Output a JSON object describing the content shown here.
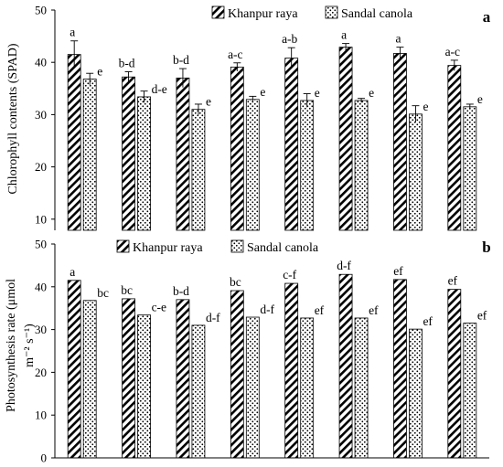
{
  "chart_data": [
    {
      "type": "bar",
      "panel_label": "a",
      "ylabel": "Chlorophyll contents (SPAD)",
      "xlabel": "",
      "ylim": [
        0,
        50
      ],
      "yticks": [
        10,
        20,
        30,
        40,
        50
      ],
      "grid": false,
      "legend_position": "top",
      "categories": [
        "",
        "",
        "",
        "",
        "",
        "",
        "",
        ""
      ],
      "series": [
        {
          "name": "Khanpur raya",
          "pattern": "diagonal-hatch",
          "values": [
            41.5,
            37.2,
            37.0,
            39.1,
            40.8,
            42.9,
            41.7,
            39.4
          ],
          "errors": [
            2.6,
            1.0,
            1.8,
            0.8,
            2.0,
            0.7,
            1.2,
            1.0
          ],
          "labels": [
            "a",
            "b-d",
            "b-d",
            "a-c",
            "a-b",
            "a",
            "a",
            "a-c"
          ]
        },
        {
          "name": "Sandal canola",
          "pattern": "dots",
          "values": [
            36.8,
            33.4,
            31.0,
            32.9,
            32.7,
            32.7,
            30.1,
            31.5
          ],
          "errors": [
            1.1,
            1.1,
            1.0,
            0.6,
            1.3,
            0.4,
            1.6,
            0.5
          ],
          "labels": [
            "e",
            "d-e",
            "e",
            "e",
            "e",
            "e",
            "e",
            "e"
          ]
        }
      ]
    },
    {
      "type": "bar",
      "panel_label": "b",
      "ylabel": "Photosynthesis rate (μmol m⁻² s⁻¹)",
      "xlabel": "",
      "ylim": [
        0,
        50
      ],
      "yticks": [
        0,
        10,
        20,
        30,
        40,
        50
      ],
      "grid": false,
      "legend_position": "top",
      "categories": [
        "",
        "",
        "",
        "",
        "",
        "",
        "",
        ""
      ],
      "series": [
        {
          "name": "Khanpur raya",
          "pattern": "diagonal-hatch",
          "values": [
            41.5,
            37.2,
            37.0,
            39.1,
            40.8,
            42.9,
            41.7,
            39.4
          ],
          "labels": [
            "a",
            "bc",
            "b-d",
            "bc",
            "c-f",
            "d-f",
            "ef",
            "ef"
          ]
        },
        {
          "name": "Sandal canola",
          "pattern": "dots",
          "values": [
            36.8,
            33.4,
            31.0,
            32.9,
            32.7,
            32.7,
            30.1,
            31.5
          ],
          "labels": [
            "bc",
            "c-e",
            "d-f",
            "d-f",
            "ef",
            "ef",
            "ef",
            "ef"
          ]
        }
      ]
    }
  ]
}
